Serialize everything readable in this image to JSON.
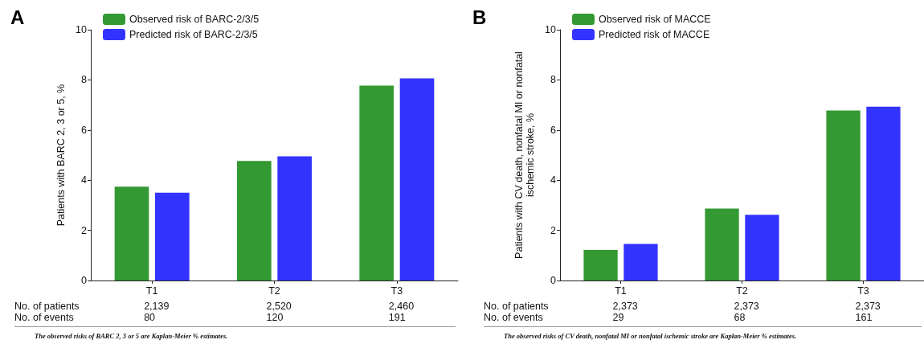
{
  "chart_data": [
    {
      "type": "bar",
      "title": "A",
      "ylabel": "Patients with BARC 2, 3 or 5, %",
      "categories": [
        "T1",
        "T2",
        "T3"
      ],
      "series": [
        {
          "name": "Observed risk of BARC-2/3/5",
          "color": "#339933",
          "values": [
            3.74,
            4.77,
            7.77
          ]
        },
        {
          "name": "Predicted risk of BARC-2/3/5",
          "color": "#3333ff",
          "values": [
            3.5,
            4.95,
            8.06
          ]
        }
      ],
      "ylim": [
        0,
        10
      ],
      "yticks": [
        0,
        2,
        4,
        6,
        8,
        10
      ],
      "grid": false,
      "legend": "top left",
      "annotations": [
        "No. of patients",
        "2,139",
        "2,520",
        "2,460",
        "No. of events",
        "80",
        "120",
        "191",
        "The observed risks of BARC 2, 3 or 5 are Kaplan-Meier % estimates."
      ]
    },
    {
      "type": "bar",
      "title": "B",
      "ylabel": "Patients with CV death, nonfatal MI or nonfatal\nischemic stroke, %",
      "categories": [
        "T1",
        "T2",
        "T3"
      ],
      "series": [
        {
          "name": "Observed risk of MACCE",
          "color": "#339933",
          "values": [
            1.22,
            2.87,
            6.78
          ]
        },
        {
          "name": "Predicted risk of MACCE",
          "color": "#3333ff",
          "values": [
            1.46,
            2.62,
            6.93
          ]
        }
      ],
      "ylim": [
        0,
        10
      ],
      "yticks": [
        0,
        2,
        4,
        6,
        8,
        10
      ],
      "grid": false,
      "legend": "top left",
      "annotations": [
        "No. of patients",
        "2,373",
        "2,373",
        "2,373",
        "No. of events",
        "29",
        "68",
        "161",
        "The observed risks of CV death, nonfatal MI or nonfatal ischemic stroke are Kaplan-Meier % estimates."
      ]
    }
  ]
}
